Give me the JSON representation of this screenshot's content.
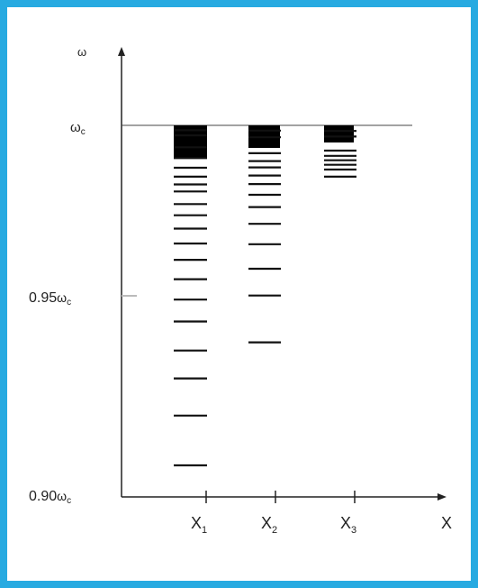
{
  "figure": {
    "frame_color": "#27aae1",
    "y_axis_label": "ω",
    "x_axis_label": "X",
    "y_ticks": [
      {
        "main": "ω",
        "sub": "c",
        "prefix": "",
        "value": 1.0
      },
      {
        "main": "ω",
        "sub": "c",
        "prefix": "0.95",
        "value": 0.95
      },
      {
        "main": "ω",
        "sub": "c",
        "prefix": "0.90",
        "value": 0.9
      }
    ],
    "x_ticks": [
      {
        "main": "X",
        "sub": "1"
      },
      {
        "main": "X",
        "sub": "2"
      },
      {
        "main": "X",
        "sub": "3"
      }
    ],
    "columns": [
      {
        "name": "X1",
        "levels": [
          0.9987,
          0.9973,
          0.9941,
          0.9912,
          0.9886,
          0.9862,
          0.9841,
          0.9822,
          0.9788,
          0.9758,
          0.9722,
          0.9682,
          0.9638,
          0.9586,
          0.9531,
          0.9472,
          0.9394,
          0.9319,
          0.9219,
          0.9085
        ]
      },
      {
        "name": "X2",
        "levels": [
          0.9986,
          0.9968,
          0.9925,
          0.9904,
          0.9887,
          0.9865,
          0.9842,
          0.9813,
          0.978,
          0.9735,
          0.968,
          0.9614,
          0.9542,
          0.9416
        ]
      },
      {
        "name": "X3",
        "levels": [
          0.9985,
          0.997,
          0.9932,
          0.9918,
          0.9906,
          0.9894,
          0.9881,
          0.9862
        ]
      }
    ]
  }
}
